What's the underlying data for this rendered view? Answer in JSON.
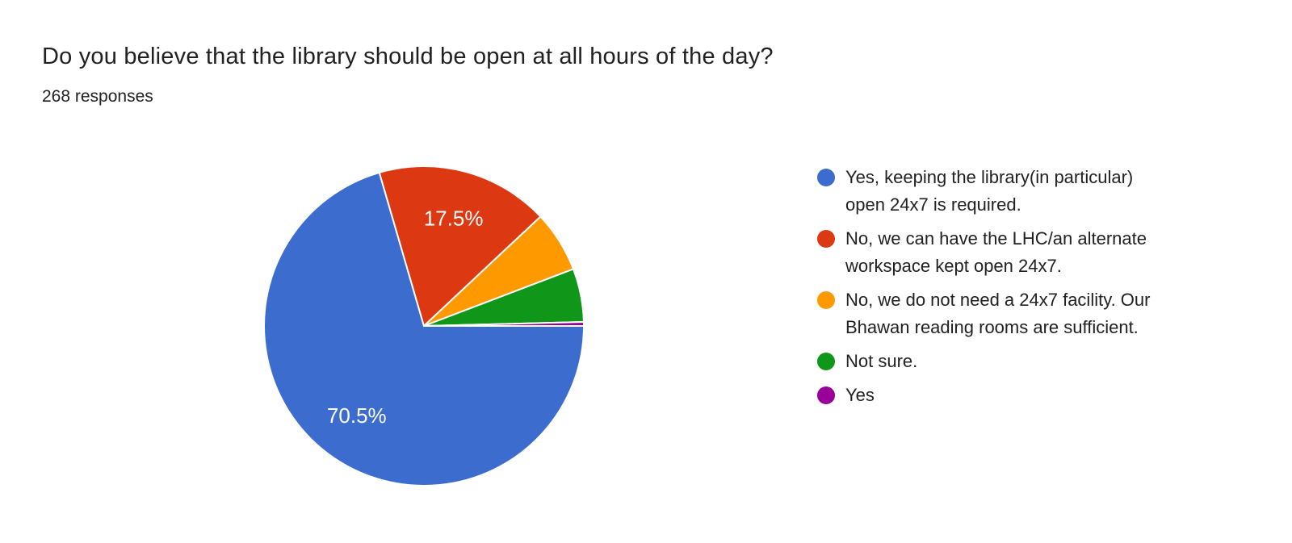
{
  "chart_data": {
    "type": "pie",
    "title": "Do you believe that the library should be open at all hours of the day?",
    "subtitle": "268 responses",
    "legend_position": "right",
    "start_angle_deg": 90,
    "direction": "clockwise",
    "separator_color": "#ffffff",
    "pie_label_color": "#ffffff",
    "slices": [
      {
        "label_lines": [
          "Yes, keeping the library(in particular)",
          "open 24x7 is required."
        ],
        "percent": 70.5,
        "color": "#3c6cce",
        "pie_label": "70.5%"
      },
      {
        "label_lines": [
          "No, we can have the LHC/an alternate",
          "workspace kept open 24x7."
        ],
        "percent": 17.5,
        "color": "#dc3912",
        "pie_label": "17.5%"
      },
      {
        "label_lines": [
          "No, we do not need a 24x7 facility. Our",
          "Bhawan reading rooms are sufficient."
        ],
        "percent": 6.2,
        "color": "#ff9900",
        "pie_label": null
      },
      {
        "label_lines": [
          "Not sure."
        ],
        "percent": 5.4,
        "color": "#109618",
        "pie_label": null
      },
      {
        "label_lines": [
          "Yes"
        ],
        "percent": 0.4,
        "color": "#990099",
        "pie_label": null
      }
    ]
  }
}
